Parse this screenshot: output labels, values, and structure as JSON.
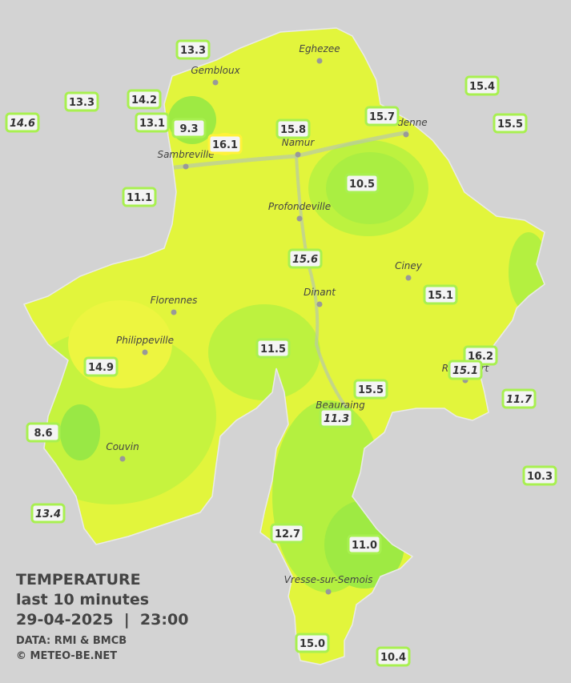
{
  "map": {
    "cities": [
      "Eghezee",
      "Gembloux",
      "Andenne",
      "Namur",
      "Sambreville",
      "Profondeville",
      "Ciney",
      "Dinant",
      "Florennes",
      "Philippeville",
      "Beauraing",
      "Rochefort",
      "Couvin",
      "Vresse-sur-Semois"
    ],
    "stations": [
      {
        "label": "13.3"
      },
      {
        "label": "13.3"
      },
      {
        "label": "14.2"
      },
      {
        "label": "14.6",
        "italic": true
      },
      {
        "label": "13.1"
      },
      {
        "label": "9.3"
      },
      {
        "label": "16.1"
      },
      {
        "label": "15.8"
      },
      {
        "label": "15.7"
      },
      {
        "label": "15.4"
      },
      {
        "label": "15.5"
      },
      {
        "label": "10.5"
      },
      {
        "label": "11.1"
      },
      {
        "label": "15.6",
        "italic": true
      },
      {
        "label": "15.1"
      },
      {
        "label": "11.5"
      },
      {
        "label": "16.2"
      },
      {
        "label": "15.1",
        "italic": true
      },
      {
        "label": "14.9"
      },
      {
        "label": "15.5"
      },
      {
        "label": "11.7",
        "italic": true
      },
      {
        "label": "11.3",
        "italic": true
      },
      {
        "label": "8.6"
      },
      {
        "label": "10.3"
      },
      {
        "label": "13.4",
        "italic": true
      },
      {
        "label": "12.7"
      },
      {
        "label": "11.0"
      },
      {
        "label": "15.0"
      },
      {
        "label": "10.4"
      }
    ]
  },
  "legend": {
    "title": "TEMPERATURE",
    "period": "last 10 minutes",
    "date": "29-04-2025  |  23:00",
    "source": "DATA: RMI & BMCB",
    "copyright": "© METEO-BE.NET"
  }
}
